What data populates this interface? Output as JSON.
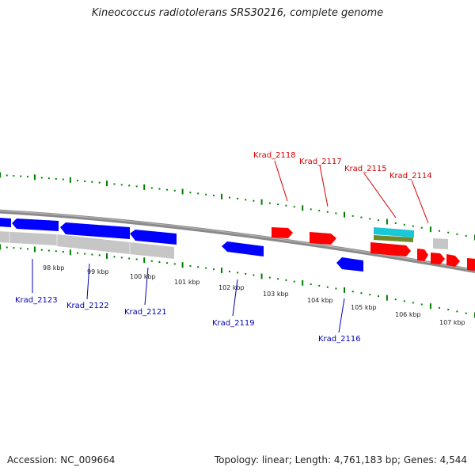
{
  "title": "Kineococcus radiotolerans SRS30216, complete genome",
  "footer": {
    "accession": "Accession: NC_009664",
    "summary": "Topology: linear; Length: 4,761,183 bp; Genes: 4,544"
  },
  "colors": {
    "forward": "#ff0000",
    "reverse": "#0000ff",
    "label_forward": "#d40000",
    "label_reverse": "#0000b8",
    "pseudo": "#c8c8c8",
    "tick": "#008000",
    "backbone": "#808080",
    "rrna_cyan": "#19c8d8",
    "rrna_olive": "#6f8a2a"
  },
  "scale_labels": [
    "98 kbp",
    "99 kbp",
    "100 kbp",
    "101 kbp",
    "102 kbp",
    "103 kbp",
    "104 kbp",
    "105 kbp",
    "106 kbp",
    "107 kbp"
  ],
  "gene_labels": {
    "forward": [
      "Krad_2118",
      "Krad_2117",
      "Krad_2115",
      "Krad_2114"
    ],
    "reverse": [
      "Krad_2123",
      "Krad_2122",
      "Krad_2121",
      "Krad_2119",
      "Krad_2116"
    ]
  }
}
